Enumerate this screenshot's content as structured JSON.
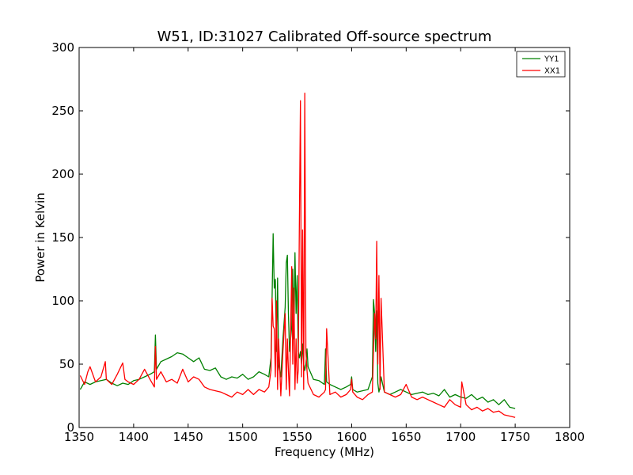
{
  "chart_data": {
    "type": "line",
    "title": "W51, ID:31027 Calibrated Off-source spectrum",
    "xlabel": "Frequency (MHz)",
    "ylabel": "Power in Kelvin",
    "xlim": [
      1350,
      1800
    ],
    "ylim": [
      0,
      300
    ],
    "xticks": [
      "1350",
      "1400",
      "1450",
      "1500",
      "1550",
      "1600",
      "1650",
      "1700",
      "1750",
      "1800"
    ],
    "yticks": [
      "0",
      "50",
      "100",
      "150",
      "200",
      "250",
      "300"
    ],
    "grid": false,
    "legend_position": "top-right",
    "series": [
      {
        "name": "YY1",
        "color": "#008000",
        "x": [
          1351,
          1355,
          1360,
          1365,
          1370,
          1375,
          1380,
          1385,
          1390,
          1395,
          1400,
          1405,
          1410,
          1415,
          1419,
          1420,
          1421,
          1425,
          1430,
          1435,
          1440,
          1445,
          1450,
          1455,
          1460,
          1465,
          1470,
          1475,
          1480,
          1485,
          1490,
          1495,
          1500,
          1505,
          1510,
          1515,
          1520,
          1524,
          1526,
          1527,
          1528,
          1529,
          1530,
          1531,
          1532,
          1533,
          1535,
          1537,
          1539,
          1540,
          1541,
          1542,
          1543,
          1545,
          1546,
          1547,
          1548,
          1549,
          1550,
          1551,
          1552,
          1553,
          1554,
          1555,
          1556,
          1557,
          1558,
          1559,
          1560,
          1565,
          1570,
          1575,
          1576,
          1577,
          1580,
          1585,
          1590,
          1595,
          1599,
          1600,
          1601,
          1605,
          1610,
          1615,
          1619,
          1620,
          1621,
          1622,
          1623,
          1624,
          1625,
          1626,
          1627,
          1630,
          1635,
          1640,
          1645,
          1650,
          1655,
          1660,
          1665,
          1670,
          1675,
          1680,
          1685,
          1690,
          1695,
          1700,
          1705,
          1710,
          1715,
          1720,
          1725,
          1730,
          1735,
          1740,
          1745,
          1750
        ],
        "y": [
          30,
          36,
          34,
          36,
          37,
          38,
          35,
          33,
          35,
          34,
          37,
          38,
          40,
          42,
          44,
          73,
          46,
          52,
          54,
          56,
          59,
          58,
          55,
          52,
          55,
          46,
          45,
          47,
          40,
          38,
          40,
          39,
          42,
          38,
          40,
          44,
          42,
          40,
          55,
          103,
          153,
          110,
          117,
          60,
          118,
          50,
          40,
          70,
          95,
          130,
          136,
          90,
          60,
          80,
          125,
          70,
          138,
          90,
          120,
          60,
          55,
          60,
          50,
          66,
          50,
          45,
          50,
          62,
          48,
          38,
          37,
          34,
          62,
          36,
          34,
          32,
          30,
          32,
          34,
          40,
          30,
          28,
          29,
          30,
          40,
          101,
          90,
          60,
          92,
          35,
          28,
          32,
          40,
          28,
          26,
          28,
          30,
          28,
          26,
          27,
          28,
          26,
          27,
          25,
          30,
          24,
          26,
          24,
          23,
          26,
          22,
          24,
          20,
          22,
          18,
          22,
          16,
          15
        ]
      },
      {
        "name": "XX1",
        "color": "#ff0000",
        "x": [
          1351,
          1355,
          1358,
          1360,
          1365,
          1370,
          1374,
          1375,
          1380,
          1385,
          1390,
          1392,
          1395,
          1400,
          1405,
          1410,
          1415,
          1419,
          1420,
          1421,
          1425,
          1430,
          1435,
          1440,
          1445,
          1450,
          1455,
          1460,
          1465,
          1470,
          1475,
          1480,
          1485,
          1490,
          1495,
          1500,
          1505,
          1510,
          1515,
          1520,
          1524,
          1526,
          1527,
          1528,
          1529,
          1530,
          1531,
          1532,
          1533,
          1535,
          1537,
          1539,
          1540,
          1541,
          1542,
          1543,
          1545,
          1546,
          1547,
          1548,
          1549,
          1550,
          1551,
          1552,
          1553,
          1554,
          1555,
          1556,
          1557,
          1558,
          1559,
          1560,
          1565,
          1570,
          1575,
          1576,
          1577,
          1580,
          1585,
          1590,
          1595,
          1599,
          1600,
          1601,
          1605,
          1610,
          1615,
          1619,
          1620,
          1621,
          1622,
          1623,
          1624,
          1625,
          1626,
          1627,
          1630,
          1635,
          1640,
          1645,
          1650,
          1655,
          1660,
          1665,
          1670,
          1675,
          1680,
          1685,
          1690,
          1695,
          1700,
          1701,
          1705,
          1710,
          1715,
          1720,
          1725,
          1730,
          1735,
          1740,
          1745,
          1750
        ],
        "y": [
          41,
          34,
          44,
          48,
          36,
          40,
          52,
          38,
          34,
          42,
          51,
          38,
          36,
          34,
          38,
          46,
          38,
          32,
          64,
          38,
          44,
          36,
          38,
          35,
          46,
          36,
          40,
          38,
          32,
          30,
          29,
          28,
          26,
          24,
          28,
          26,
          30,
          26,
          30,
          28,
          32,
          45,
          102,
          80,
          78,
          40,
          100,
          30,
          70,
          25,
          60,
          90,
          30,
          70,
          45,
          25,
          127,
          50,
          110,
          30,
          70,
          35,
          45,
          157,
          258,
          40,
          156,
          30,
          264,
          60,
          45,
          35,
          26,
          24,
          28,
          30,
          78,
          26,
          28,
          24,
          26,
          30,
          38,
          28,
          24,
          22,
          26,
          28,
          60,
          90,
          70,
          147,
          50,
          120,
          30,
          102,
          28,
          26,
          24,
          26,
          34,
          24,
          22,
          24,
          22,
          20,
          18,
          16,
          22,
          18,
          16,
          36,
          18,
          14,
          16,
          13,
          15,
          12,
          13,
          10,
          9,
          8
        ]
      }
    ]
  }
}
